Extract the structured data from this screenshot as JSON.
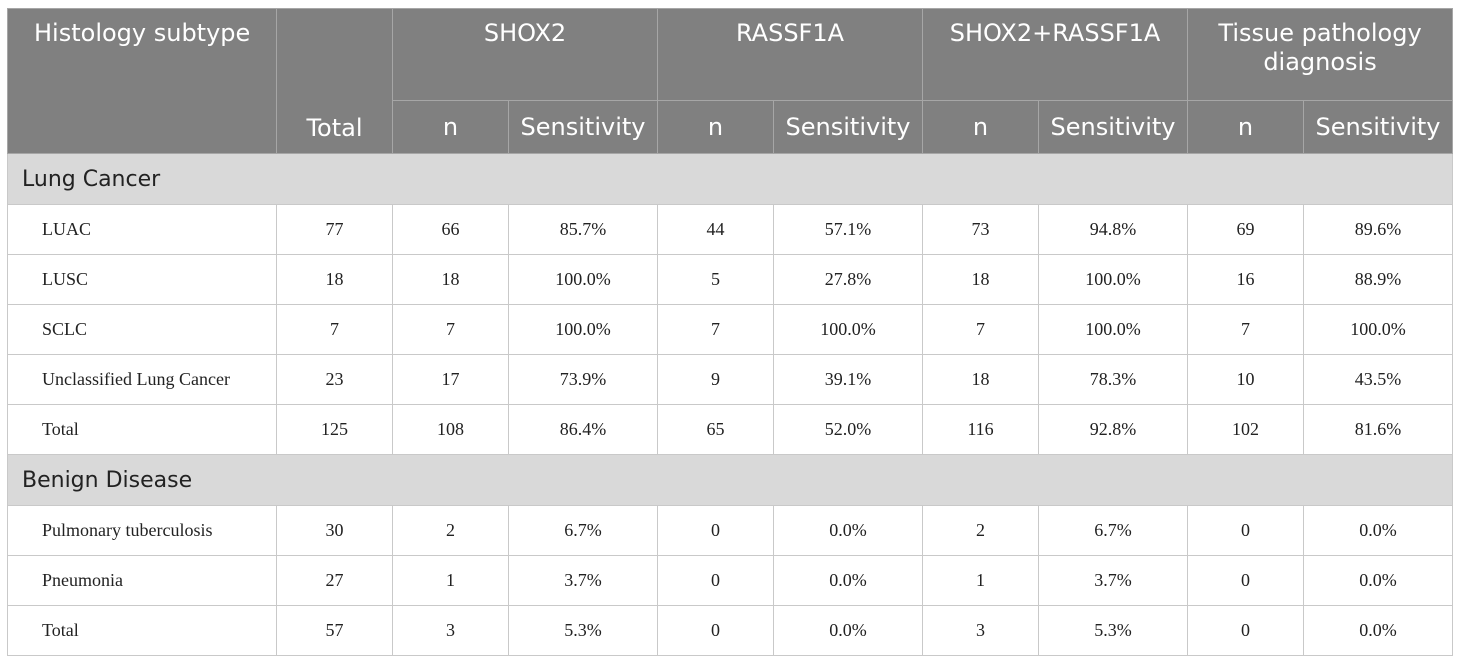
{
  "header": {
    "histology": "Histology subtype",
    "total": "Total",
    "groups": [
      "SHOX2",
      "RASSF1A",
      "SHOX2+RASSF1A",
      "Tissue pathology diagnosis"
    ],
    "sub_n": "n",
    "sub_sens": "Sensitivity"
  },
  "sections": [
    {
      "title": "Lung Cancer",
      "rows": [
        [
          "LUAC",
          "77",
          "66",
          "85.7%",
          "44",
          "57.1%",
          "73",
          "94.8%",
          "69",
          "89.6%"
        ],
        [
          "LUSC",
          "18",
          "18",
          "100.0%",
          "5",
          "27.8%",
          "18",
          "100.0%",
          "16",
          "88.9%"
        ],
        [
          "SCLC",
          "7",
          "7",
          "100.0%",
          "7",
          "100.0%",
          "7",
          "100.0%",
          "7",
          "100.0%"
        ],
        [
          "Unclassified Lung Cancer",
          "23",
          "17",
          "73.9%",
          "9",
          "39.1%",
          "18",
          "78.3%",
          "10",
          "43.5%"
        ],
        [
          "Total",
          "125",
          "108",
          "86.4%",
          "65",
          "52.0%",
          "116",
          "92.8%",
          "102",
          "81.6%"
        ]
      ]
    },
    {
      "title": "Benign Disease",
      "rows": [
        [
          "Pulmonary tuberculosis",
          "30",
          "2",
          "6.7%",
          "0",
          "0.0%",
          "2",
          "6.7%",
          "0",
          "0.0%"
        ],
        [
          "Pneumonia",
          "27",
          "1",
          "3.7%",
          "0",
          "0.0%",
          "1",
          "3.7%",
          "0",
          "0.0%"
        ],
        [
          "Total",
          "57",
          "3",
          "5.3%",
          "0",
          "0.0%",
          "3",
          "5.3%",
          "0",
          "0.0%"
        ]
      ]
    }
  ]
}
